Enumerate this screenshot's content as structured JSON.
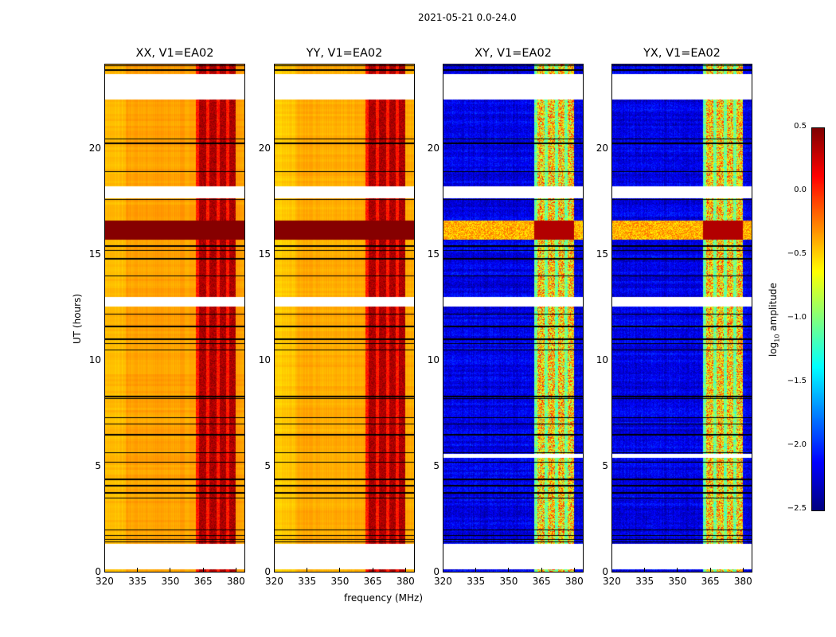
{
  "suptitle": "2021-05-21 0.0-24.0",
  "chart_data": {
    "type": "heatmap",
    "title": "2021-05-21 0.0-24.0",
    "xlabel": "frequency (MHz)",
    "ylabel": "UT (hours)",
    "xlim": [
      320,
      384.4
    ],
    "ylim": [
      0,
      24
    ],
    "xticks": [
      "320",
      "335",
      "350",
      "365",
      "380"
    ],
    "xtick_values": [
      320,
      335,
      350,
      365,
      380
    ],
    "yticks": [
      "0",
      "5",
      "10",
      "15",
      "20"
    ],
    "ytick_values": [
      0,
      5,
      10,
      15,
      20
    ],
    "colorbar": {
      "label": "log10 amplitude",
      "label_main": "log",
      "label_sub": "10",
      "label_rest": " amplitude",
      "range": [
        -2.5,
        0.5
      ],
      "ticks": [
        "0.5",
        "0.0",
        "−0.5",
        "−1.0",
        "−1.5",
        "−2.0",
        "−2.5"
      ],
      "tick_values": [
        0.5,
        0,
        -0.5,
        -1,
        -1.5,
        -2,
        -2.5
      ],
      "colormap": "jet"
    },
    "panels": [
      {
        "title": "XX, V1=EA02",
        "kind": "auto",
        "base": -0.35
      },
      {
        "title": "YY, V1=EA02",
        "kind": "auto",
        "base": -0.38
      },
      {
        "title": "XY, V1=EA02",
        "kind": "cross",
        "base": -2.2
      },
      {
        "title": "YX, V1=EA02",
        "kind": "cross",
        "base": -2.2
      }
    ],
    "rfi_band_mhz": [
      362,
      380
    ],
    "strong_rfi_hours": [
      15.7,
      16.6
    ],
    "gaps_hours": [
      [
        0.15,
        1.35
      ],
      [
        12.55,
        13.0
      ],
      [
        17.65,
        18.2
      ],
      [
        22.3,
        23.5
      ]
    ],
    "cross_extra_gaps_hours": [
      [
        5.4,
        5.6
      ]
    ],
    "flagged_rows_hours": [
      1.45,
      1.55,
      1.75,
      2.0,
      3.5,
      3.75,
      4.1,
      4.4,
      5.2,
      5.65,
      6.5,
      7.0,
      7.3,
      8.2,
      8.3,
      10.5,
      10.8,
      11.0,
      11.6,
      12.2,
      14.0,
      14.8,
      15.2,
      15.4,
      17.6,
      18.9,
      20.25,
      20.45,
      23.7,
      23.9
    ]
  }
}
